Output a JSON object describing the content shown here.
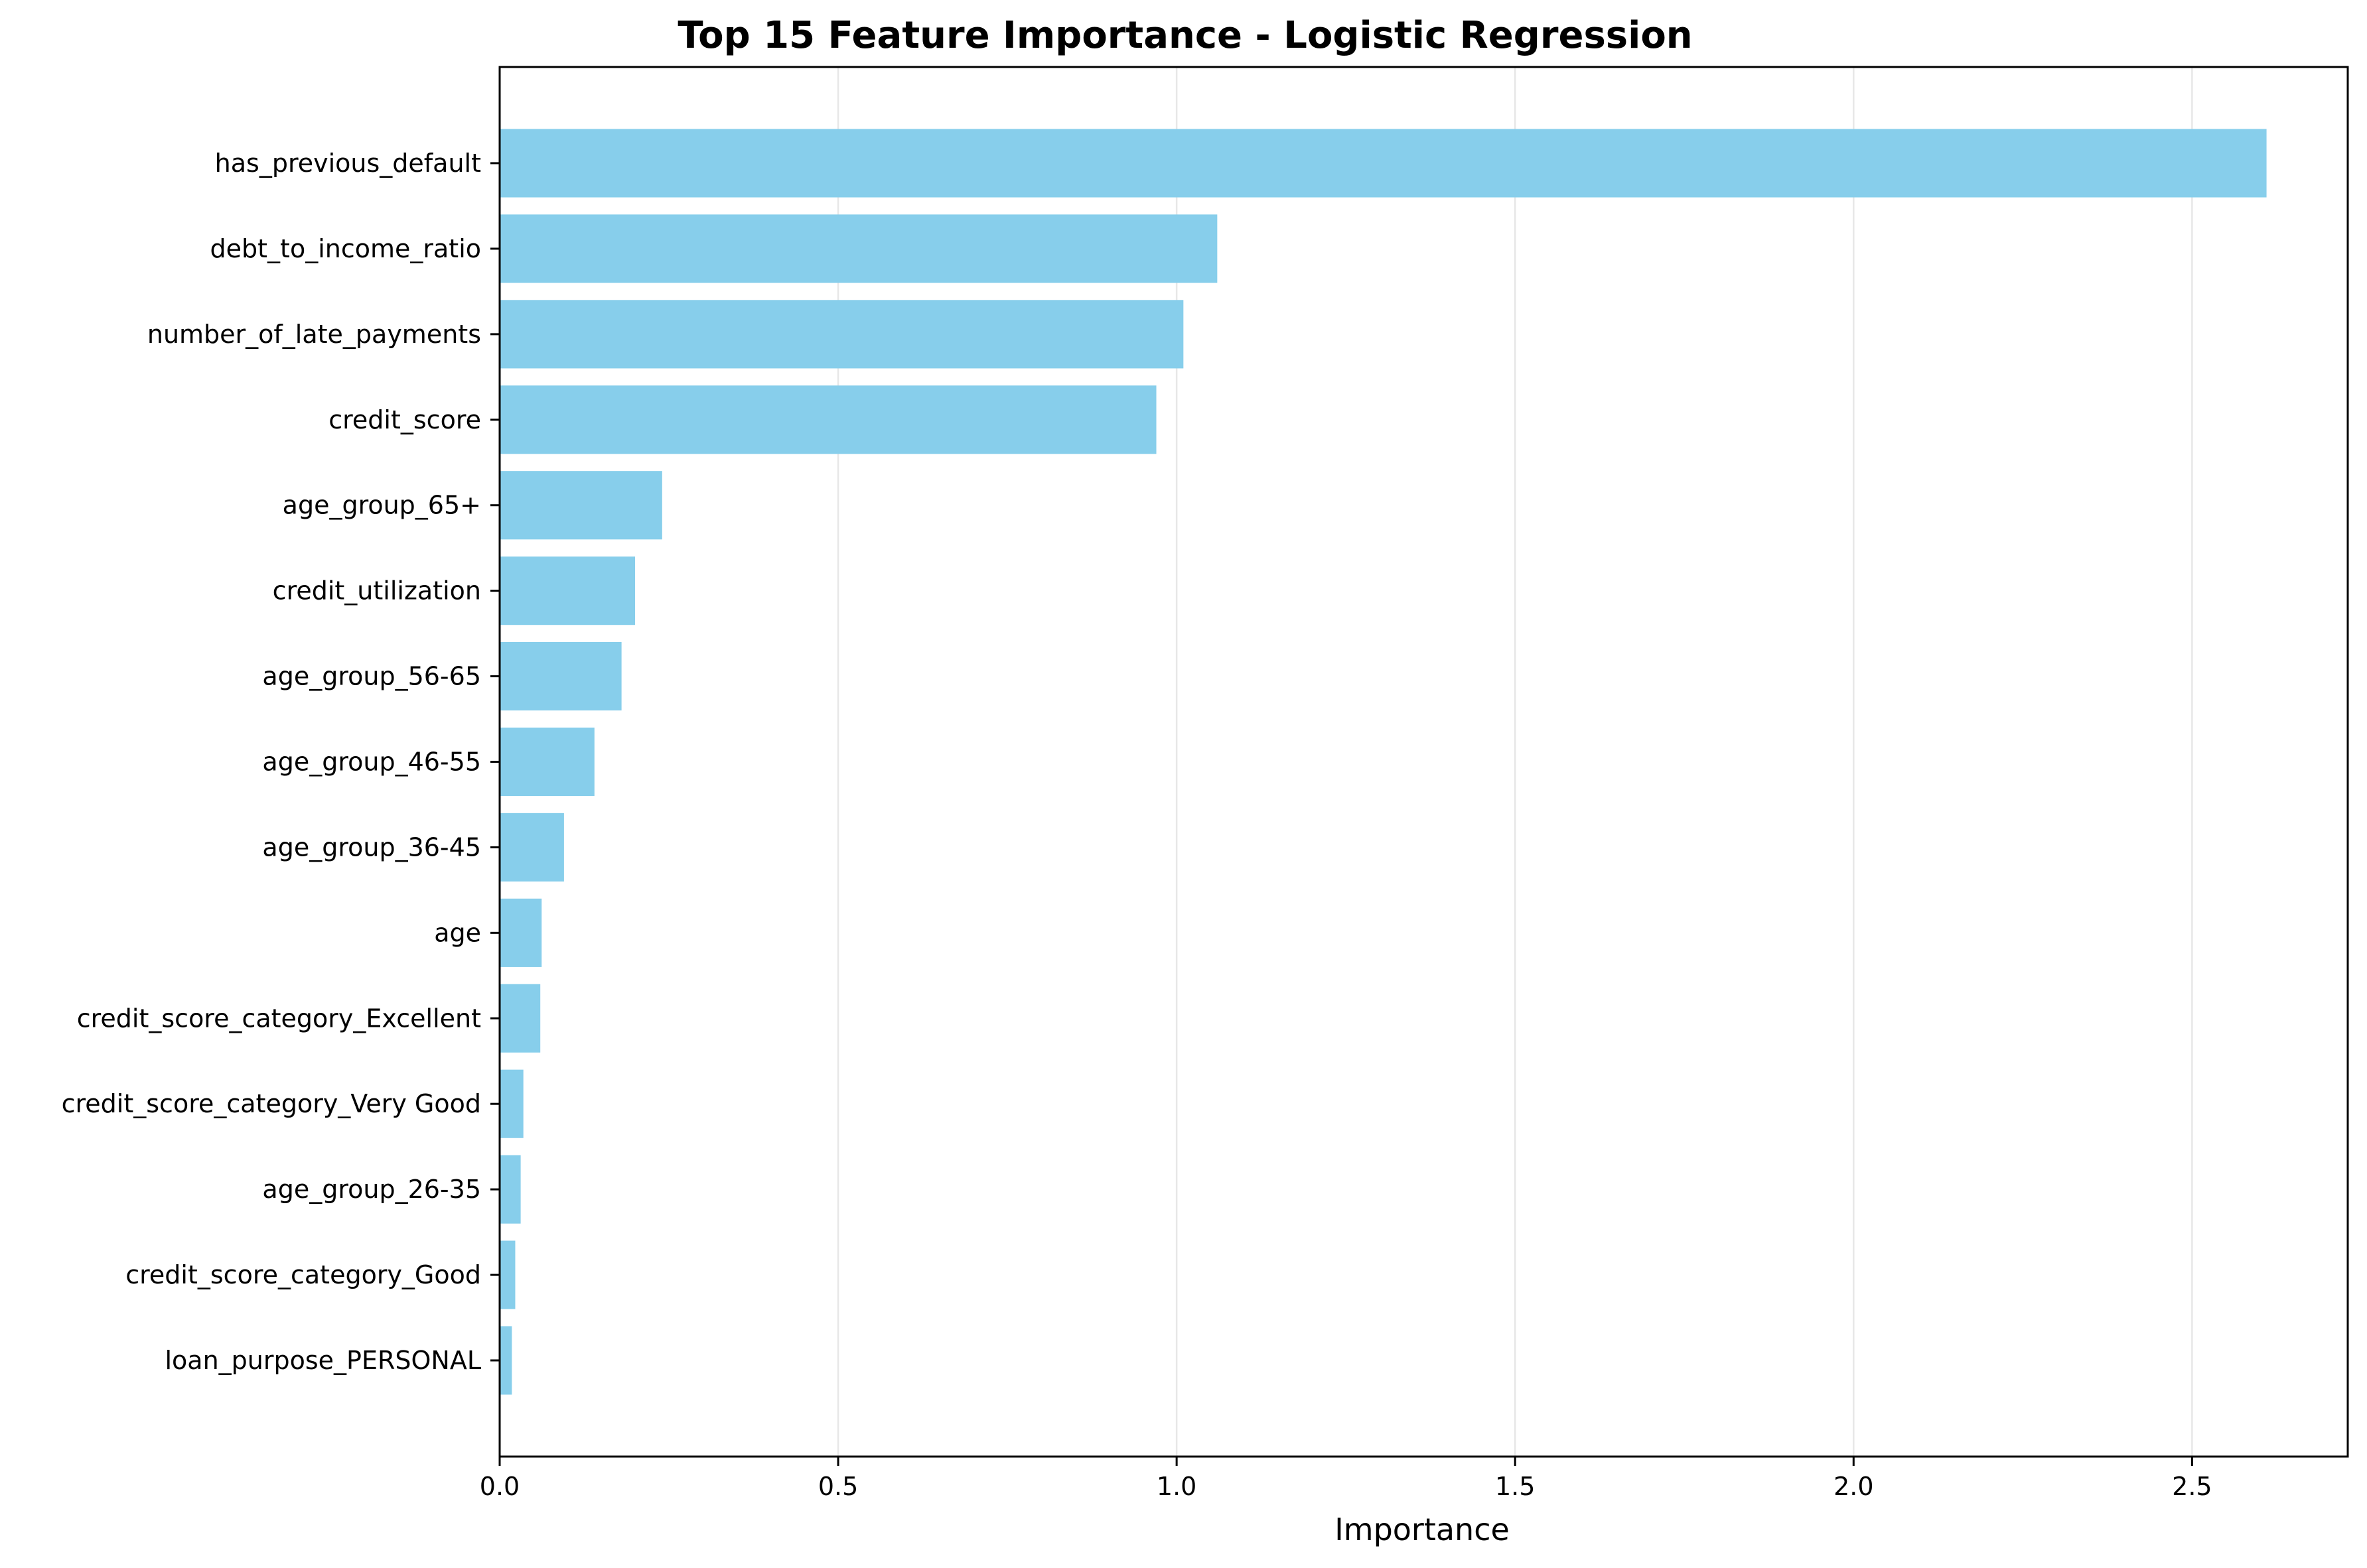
{
  "chart_data": {
    "type": "bar",
    "orientation": "horizontal",
    "title": "Top 15 Feature Importance - Logistic Regression",
    "xlabel": "Importance",
    "ylabel": "",
    "xlim": [
      0,
      2.73
    ],
    "xticks": [
      0.0,
      0.5,
      1.0,
      1.5,
      2.0,
      2.5
    ],
    "xtick_labels": [
      "0.0",
      "0.5",
      "1.0",
      "1.5",
      "2.0",
      "2.5"
    ],
    "grid": "x-axis only",
    "bar_color": "#87ceeb",
    "categories": [
      "has_previous_default",
      "debt_to_income_ratio",
      "number_of_late_payments",
      "credit_score",
      "age_group_65+",
      "credit_utilization",
      "age_group_56-65",
      "age_group_46-55",
      "age_group_36-45",
      "age",
      "credit_score_category_Excellent",
      "credit_score_category_Very Good",
      "age_group_26-35",
      "credit_score_category_Good",
      "loan_purpose_PERSONAL"
    ],
    "values": [
      2.61,
      1.06,
      1.01,
      0.97,
      0.24,
      0.2,
      0.18,
      0.14,
      0.095,
      0.062,
      0.06,
      0.035,
      0.031,
      0.023,
      0.018
    ]
  }
}
